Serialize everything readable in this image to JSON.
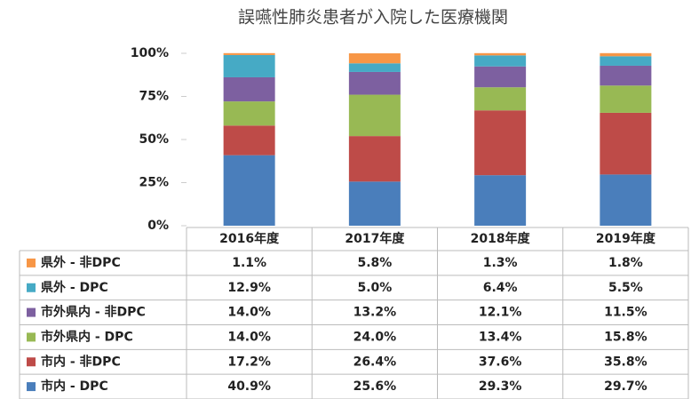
{
  "chart_data": {
    "type": "stacked_bar_percent",
    "title": "誤嚥性肺炎患者が入院した医療機関",
    "categories": [
      "2016年度",
      "2017年度",
      "2018年度",
      "2019年度"
    ],
    "series": [
      {
        "name": "市内 - DPC",
        "color": "#4a7ebb",
        "values": [
          40.9,
          25.6,
          29.3,
          29.7
        ],
        "value_labels": [
          "40.9%",
          "25.6%",
          "29.3%",
          "29.7%"
        ]
      },
      {
        "name": "市内 - 非DPC",
        "color": "#be4b48",
        "values": [
          17.2,
          26.4,
          37.6,
          35.8
        ],
        "value_labels": [
          "17.2%",
          "26.4%",
          "37.6%",
          "35.8%"
        ]
      },
      {
        "name": "市外県内 - DPC",
        "color": "#98b954",
        "values": [
          14.0,
          24.0,
          13.4,
          15.8
        ],
        "value_labels": [
          "14.0%",
          "24.0%",
          "13.4%",
          "15.8%"
        ]
      },
      {
        "name": "市外県内 - 非DPC",
        "color": "#7d60a0",
        "values": [
          14.0,
          13.2,
          12.1,
          11.5
        ],
        "value_labels": [
          "14.0%",
          "13.2%",
          "12.1%",
          "11.5%"
        ]
      },
      {
        "name": "県外 - DPC",
        "color": "#46aac5",
        "values": [
          12.9,
          5.0,
          6.4,
          5.5
        ],
        "value_labels": [
          "12.9%",
          "5.0%",
          "6.4%",
          "5.5%"
        ]
      },
      {
        "name": "県外 - 非DPC",
        "color": "#f79646",
        "values": [
          1.1,
          5.8,
          1.3,
          1.8
        ],
        "value_labels": [
          "1.1%",
          "5.8%",
          "1.3%",
          "1.8%"
        ]
      }
    ],
    "ylim": [
      0,
      100
    ],
    "yticks": [
      {
        "value": 0,
        "label": "0%"
      },
      {
        "value": 25,
        "label": "25%"
      },
      {
        "value": 50,
        "label": "50%"
      },
      {
        "value": 75,
        "label": "75%"
      },
      {
        "value": 100,
        "label": "100%"
      }
    ]
  }
}
